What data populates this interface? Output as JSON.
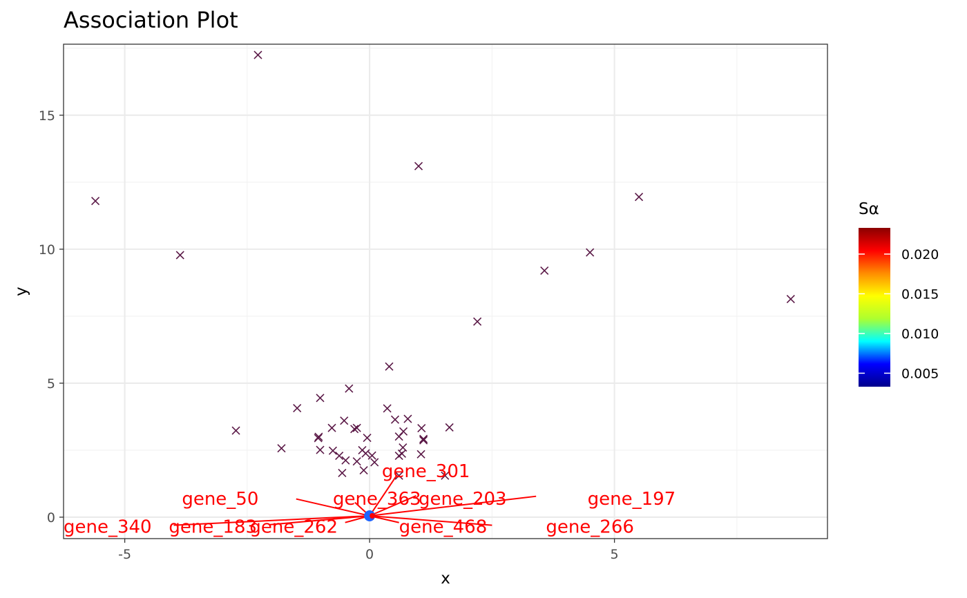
{
  "chart_data": {
    "type": "scatter",
    "title": "Association Plot",
    "xlabel": "x",
    "ylabel": "y",
    "xlim": [
      -6.25,
      9.35
    ],
    "ylim": [
      -0.8,
      17.65
    ],
    "xticks": [
      -5,
      0,
      5
    ],
    "yticks": [
      0,
      5,
      10,
      15
    ],
    "grid": true,
    "point_color": "#5a1846",
    "label_color": "#ff0000",
    "points": [
      [
        -2.28,
        17.25
      ],
      [
        1.0,
        13.1
      ],
      [
        -5.6,
        11.8
      ],
      [
        5.5,
        11.95
      ],
      [
        -3.87,
        9.78
      ],
      [
        4.5,
        9.88
      ],
      [
        3.57,
        9.2
      ],
      [
        8.6,
        8.14
      ],
      [
        2.2,
        7.3
      ],
      [
        0.4,
        5.62
      ],
      [
        -0.42,
        4.8
      ],
      [
        -1.01,
        4.45
      ],
      [
        -1.48,
        4.07
      ],
      [
        0.36,
        4.06
      ],
      [
        0.78,
        3.67
      ],
      [
        0.52,
        3.64
      ],
      [
        -0.52,
        3.6
      ],
      [
        1.63,
        3.35
      ],
      [
        -0.77,
        3.33
      ],
      [
        -0.26,
        3.33
      ],
      [
        -0.31,
        3.29
      ],
      [
        1.06,
        3.32
      ],
      [
        -2.73,
        3.23
      ],
      [
        0.69,
        3.2
      ],
      [
        -1.04,
        3.0
      ],
      [
        -1.05,
        2.95
      ],
      [
        0.6,
        3.01
      ],
      [
        1.1,
        2.92
      ],
      [
        1.1,
        2.87
      ],
      [
        -0.05,
        2.96
      ],
      [
        -1.8,
        2.57
      ],
      [
        0.68,
        2.6
      ],
      [
        -1.01,
        2.51
      ],
      [
        -0.75,
        2.48
      ],
      [
        -0.15,
        2.5
      ],
      [
        0.66,
        2.37
      ],
      [
        1.05,
        2.35
      ],
      [
        -0.62,
        2.29
      ],
      [
        0.6,
        2.29
      ],
      [
        -0.08,
        2.38
      ],
      [
        0.05,
        2.3
      ],
      [
        -0.49,
        2.12
      ],
      [
        -0.26,
        2.08
      ],
      [
        0.1,
        2.05
      ],
      [
        -0.56,
        1.65
      ],
      [
        -0.12,
        1.75
      ],
      [
        0.6,
        1.55
      ],
      [
        1.54,
        1.55
      ]
    ],
    "colorbar": {
      "title": "Sα",
      "range": [
        0.0033,
        0.0233
      ],
      "ticks": [
        0.005,
        0.01,
        0.015,
        0.02
      ],
      "tick_labels": [
        "0.005",
        "0.010",
        "0.015",
        "0.020"
      ],
      "colors": [
        "#00008b",
        "#0000ff",
        "#00ffff",
        "#adff2f",
        "#ffff00",
        "#ff8c00",
        "#ff0000",
        "#8b0000"
      ]
    },
    "gene_cluster": {
      "x": 0.0,
      "y": 0.05,
      "color": "#1e64ff"
    },
    "gene_labels": [
      {
        "name": "gene_301",
        "x": 1.15,
        "y": 1.72
      },
      {
        "name": "gene_50",
        "x": -3.05,
        "y": 0.7
      },
      {
        "name": "gene_363",
        "x": 0.15,
        "y": 0.7
      },
      {
        "name": "gene_203",
        "x": 1.9,
        "y": 0.7
      },
      {
        "name": "gene_197",
        "x": 5.35,
        "y": 0.7
      },
      {
        "name": "gene_340",
        "x": -5.35,
        "y": -0.35
      },
      {
        "name": "gene_183",
        "x": -3.2,
        "y": -0.35
      },
      {
        "name": "gene_262",
        "x": -1.55,
        "y": -0.35
      },
      {
        "name": "gene_468",
        "x": 1.5,
        "y": -0.35
      },
      {
        "name": "gene_266",
        "x": 4.5,
        "y": -0.35
      }
    ],
    "segments": [
      {
        "to": [
          0.55,
          1.55
        ]
      },
      {
        "to": [
          -1.5,
          0.68
        ]
      },
      {
        "to": [
          -0.3,
          0.55
        ]
      },
      {
        "to": [
          0.95,
          0.8
        ]
      },
      {
        "to": [
          3.4,
          0.78
        ]
      },
      {
        "to": [
          -4.0,
          -0.3
        ]
      },
      {
        "to": [
          -2.05,
          -0.28
        ]
      },
      {
        "to": [
          -0.5,
          -0.2
        ]
      },
      {
        "to": [
          0.6,
          -0.2
        ]
      },
      {
        "to": [
          2.5,
          -0.3
        ]
      }
    ]
  }
}
